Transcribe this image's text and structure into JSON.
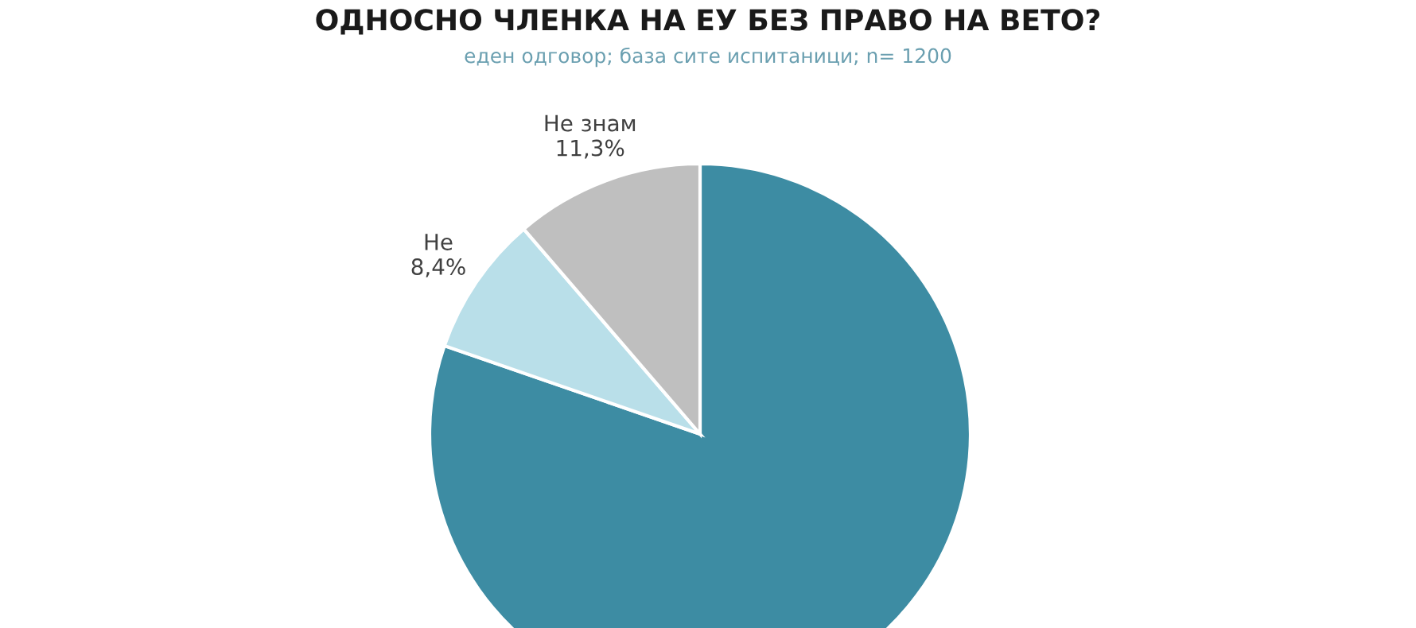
{
  "chart_data": {
    "type": "pie",
    "title": "ОДНОСНО ЧЛЕНКА НА ЕУ БЕЗ ПРАВО НА ВЕТО?",
    "subtitle": "еден одговор; база сите испитаници; n= 1200",
    "categories": [
      null,
      "Не",
      "Не знам"
    ],
    "values": [
      80.3,
      8.4,
      11.3
    ],
    "value_labels": [
      null,
      "8,4%",
      "11,3%"
    ],
    "colors": [
      "#3d8ca3",
      "#b9dfe9",
      "#bfbfbf"
    ],
    "legend": false
  }
}
